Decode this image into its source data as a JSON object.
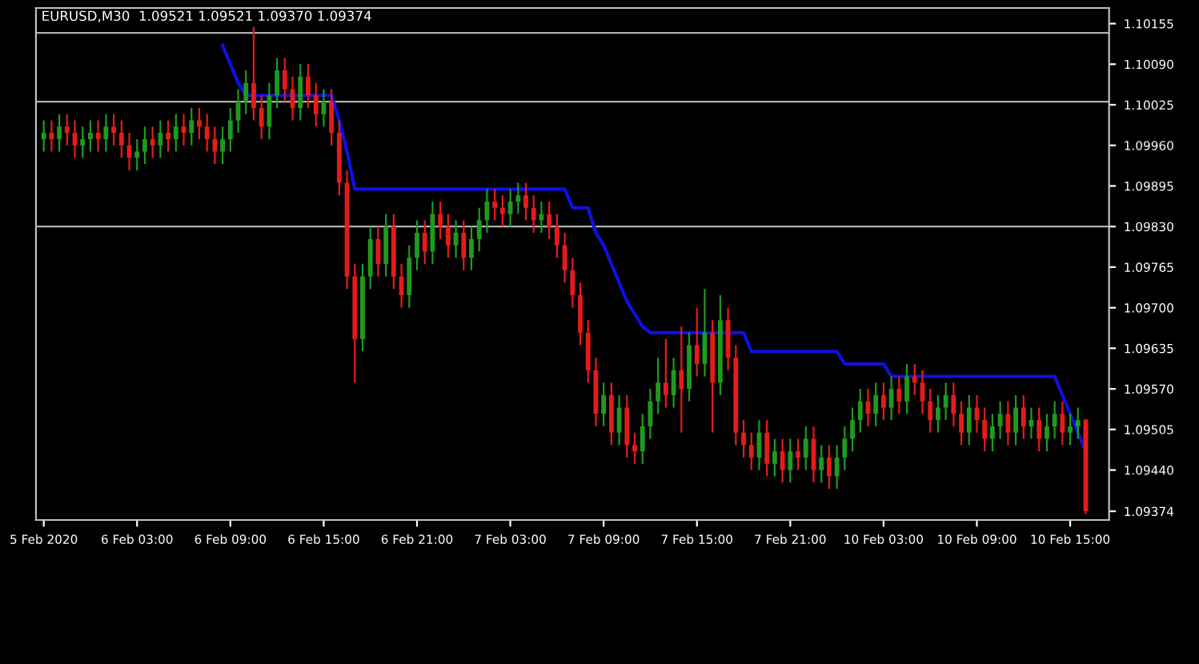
{
  "chart_data": {
    "type": "candlestick",
    "title": "EURUSD,M30  1.09521 1.09521 1.09370 1.09374",
    "categories": [
      "5 Feb 2020",
      null,
      null,
      null,
      null,
      null,
      null,
      null,
      null,
      null,
      null,
      null,
      "6 Feb 03:00",
      null,
      null,
      null,
      null,
      null,
      null,
      null,
      null,
      null,
      null,
      null,
      "6 Feb 09:00",
      null,
      null,
      null,
      null,
      null,
      null,
      null,
      null,
      null,
      null,
      null,
      "6 Feb 15:00",
      null,
      null,
      null,
      null,
      null,
      null,
      null,
      null,
      null,
      null,
      null,
      "6 Feb 21:00",
      null,
      null,
      null,
      null,
      null,
      null,
      null,
      null,
      null,
      null,
      null,
      "7 Feb 03:00",
      null,
      null,
      null,
      null,
      null,
      null,
      null,
      null,
      null,
      null,
      null,
      "7 Feb 09:00",
      null,
      null,
      null,
      null,
      null,
      null,
      null,
      null,
      null,
      null,
      null,
      "7 Feb 15:00",
      null,
      null,
      null,
      null,
      null,
      null,
      null,
      null,
      null,
      null,
      null,
      "7 Feb 21:00",
      null,
      null,
      null,
      null,
      null,
      null,
      null,
      null,
      null,
      null,
      null,
      "10 Feb 03:00",
      null,
      null,
      null,
      null,
      null,
      null,
      null,
      null,
      null,
      null,
      null,
      "10 Feb 09:00",
      null,
      null,
      null,
      null,
      null,
      null,
      null,
      null,
      null,
      null,
      null,
      "10 Feb 15:00",
      null,
      null
    ],
    "colors": [
      "#1f9a1f",
      "#e51b1b",
      "#1f9a1f",
      "#e51b1b",
      "#e51b1b",
      "#1f9a1f",
      "#1f9a1f",
      "#e51b1b",
      "#1f9a1f",
      "#e51b1b",
      "#e51b1b",
      "#e51b1b",
      "#1f9a1f",
      "#1f9a1f",
      "#e51b1b",
      "#1f9a1f",
      "#e51b1b",
      "#1f9a1f",
      "#e51b1b",
      "#1f9a1f",
      "#e51b1b",
      "#e51b1b",
      "#e51b1b",
      "#1f9a1f",
      "#1f9a1f",
      "#1f9a1f",
      "#1f9a1f",
      "#e51b1b",
      "#e51b1b",
      "#1f9a1f",
      "#1f9a1f",
      "#e51b1b",
      "#e51b1b",
      "#1f9a1f",
      "#e51b1b",
      "#e51b1b",
      "#1f9a1f",
      "#e51b1b",
      "#e51b1b",
      "#e51b1b",
      "#e51b1b",
      "#1f9a1f",
      "#1f9a1f",
      "#e51b1b",
      "#1f9a1f",
      "#e51b1b",
      "#e51b1b",
      "#1f9a1f",
      "#1f9a1f",
      "#e51b1b",
      "#1f9a1f",
      "#e51b1b",
      "#e51b1b",
      "#1f9a1f",
      "#e51b1b",
      "#1f9a1f",
      "#1f9a1f",
      "#1f9a1f",
      "#e51b1b",
      "#e51b1b",
      "#1f9a1f",
      "#1f9a1f",
      "#e51b1b",
      "#e51b1b",
      "#1f9a1f",
      "#e51b1b",
      "#e51b1b",
      "#e51b1b",
      "#e51b1b",
      "#e51b1b",
      "#e51b1b",
      "#e51b1b",
      "#1f9a1f",
      "#e51b1b",
      "#1f9a1f",
      "#e51b1b",
      "#e51b1b",
      "#1f9a1f",
      "#1f9a1f",
      "#1f9a1f",
      "#e51b1b",
      "#1f9a1f",
      "#e51b1b",
      "#1f9a1f",
      "#e51b1b",
      "#1f9a1f",
      "#e51b1b",
      "#1f9a1f",
      "#e51b1b",
      "#e51b1b",
      "#e51b1b",
      "#e51b1b",
      "#1f9a1f",
      "#e51b1b",
      "#1f9a1f",
      "#e51b1b",
      "#1f9a1f",
      "#e51b1b",
      "#1f9a1f",
      "#e51b1b",
      "#1f9a1f",
      "#e51b1b",
      "#1f9a1f",
      "#1f9a1f",
      "#1f9a1f",
      "#1f9a1f",
      "#e51b1b",
      "#1f9a1f",
      "#e51b1b",
      "#1f9a1f",
      "#e51b1b",
      "#1f9a1f",
      "#e51b1b",
      "#e51b1b",
      "#e51b1b",
      "#1f9a1f",
      "#1f9a1f",
      "#e51b1b",
      "#e51b1b",
      "#1f9a1f",
      "#e51b1b",
      "#e51b1b",
      "#1f9a1f",
      "#1f9a1f",
      "#e51b1b",
      "#1f9a1f",
      "#e51b1b",
      "#1f9a1f",
      "#e51b1b",
      "#1f9a1f",
      "#1f9a1f",
      "#e51b1b",
      "#1f9a1f",
      "#1f9a1f",
      "#e51b1b"
    ],
    "ohlc": [
      [
        1.0997,
        1.1,
        1.0995,
        1.0998
      ],
      [
        1.0998,
        1.1,
        1.0995,
        1.0997
      ],
      [
        1.0997,
        1.1001,
        1.0995,
        1.0999
      ],
      [
        1.0999,
        1.1001,
        1.0996,
        1.0998
      ],
      [
        1.0998,
        1.1,
        1.0994,
        1.0996
      ],
      [
        1.0996,
        1.0999,
        1.0994,
        1.0997
      ],
      [
        1.0997,
        1.1,
        1.0995,
        1.0998
      ],
      [
        1.0998,
        1.1,
        1.0995,
        1.0997
      ],
      [
        1.0997,
        1.1001,
        1.0995,
        1.0999
      ],
      [
        1.0999,
        1.1001,
        1.0996,
        1.0998
      ],
      [
        1.0998,
        1.1,
        1.0994,
        1.0996
      ],
      [
        1.0996,
        1.0998,
        1.0992,
        1.0994
      ],
      [
        1.0994,
        1.0997,
        1.0992,
        1.0995
      ],
      [
        1.0995,
        1.0999,
        1.0993,
        1.0997
      ],
      [
        1.0997,
        1.0999,
        1.0994,
        1.0996
      ],
      [
        1.0996,
        1.1,
        1.0994,
        1.0998
      ],
      [
        1.0998,
        1.1,
        1.0995,
        1.0997
      ],
      [
        1.0997,
        1.1001,
        1.0995,
        1.0999
      ],
      [
        1.0999,
        1.1001,
        1.0996,
        1.0998
      ],
      [
        1.0998,
        1.1002,
        1.0996,
        1.1
      ],
      [
        1.1,
        1.1002,
        1.0997,
        1.0999
      ],
      [
        1.0999,
        1.1001,
        1.0995,
        1.0997
      ],
      [
        1.0997,
        1.0999,
        1.0993,
        1.0995
      ],
      [
        1.0995,
        1.0999,
        1.0993,
        1.0997
      ],
      [
        1.0997,
        1.1002,
        1.0995,
        1.1
      ],
      [
        1.1,
        1.1005,
        1.0998,
        1.1003
      ],
      [
        1.1003,
        1.1008,
        1.1001,
        1.1006
      ],
      [
        1.1006,
        1.1015,
        1.1,
        1.1002
      ],
      [
        1.1002,
        1.1004,
        1.0997,
        1.0999
      ],
      [
        1.0999,
        1.1006,
        1.0997,
        1.1004
      ],
      [
        1.1004,
        1.101,
        1.1002,
        1.1008
      ],
      [
        1.1008,
        1.101,
        1.1003,
        1.1005
      ],
      [
        1.1005,
        1.1007,
        1.1,
        1.1002
      ],
      [
        1.1002,
        1.1009,
        1.1,
        1.1007
      ],
      [
        1.1007,
        1.1009,
        1.1002,
        1.1004
      ],
      [
        1.1004,
        1.1006,
        1.0999,
        1.1001
      ],
      [
        1.1001,
        1.1005,
        1.0999,
        1.1003
      ],
      [
        1.1003,
        1.1005,
        1.0996,
        1.0998
      ],
      [
        1.0998,
        1.1,
        1.0988,
        1.099
      ],
      [
        1.099,
        1.0992,
        1.0973,
        1.0975
      ],
      [
        1.0975,
        1.0977,
        1.0958,
        1.0965
      ],
      [
        1.0965,
        1.0977,
        1.0963,
        1.0975
      ],
      [
        1.0975,
        1.0983,
        1.0973,
        1.0981
      ],
      [
        1.0981,
        1.0983,
        1.0975,
        1.0977
      ],
      [
        1.0977,
        1.0985,
        1.0975,
        1.0983
      ],
      [
        1.0983,
        1.0985,
        1.0973,
        1.0975
      ],
      [
        1.0975,
        1.0977,
        1.097,
        1.0972
      ],
      [
        1.0972,
        1.098,
        1.097,
        1.0978
      ],
      [
        1.0978,
        1.0984,
        1.0976,
        1.0982
      ],
      [
        1.0982,
        1.0984,
        1.0977,
        1.0979
      ],
      [
        1.0979,
        1.0987,
        1.0977,
        1.0985
      ],
      [
        1.0985,
        1.0987,
        1.0981,
        1.0983
      ],
      [
        1.0983,
        1.0985,
        1.0978,
        1.098
      ],
      [
        1.098,
        1.0984,
        1.0978,
        1.0982
      ],
      [
        1.0982,
        1.0984,
        1.0976,
        1.0978
      ],
      [
        1.0978,
        1.0983,
        1.0976,
        1.0981
      ],
      [
        1.0981,
        1.0986,
        1.0979,
        1.0984
      ],
      [
        1.0984,
        1.0989,
        1.0982,
        1.0987
      ],
      [
        1.0987,
        1.0989,
        1.0984,
        1.0986
      ],
      [
        1.0986,
        1.0988,
        1.0983,
        1.0985
      ],
      [
        1.0985,
        1.0989,
        1.0983,
        1.0987
      ],
      [
        1.0987,
        1.099,
        1.0985,
        1.0988
      ],
      [
        1.0988,
        1.099,
        1.0984,
        1.0986
      ],
      [
        1.0986,
        1.0988,
        1.0982,
        1.0984
      ],
      [
        1.0984,
        1.0987,
        1.0982,
        1.0985
      ],
      [
        1.0985,
        1.0987,
        1.0981,
        1.0983
      ],
      [
        1.0983,
        1.0985,
        1.0978,
        1.098
      ],
      [
        1.098,
        1.0982,
        1.0974,
        1.0976
      ],
      [
        1.0976,
        1.0978,
        1.097,
        1.0972
      ],
      [
        1.0972,
        1.0974,
        1.0964,
        1.0966
      ],
      [
        1.0966,
        1.0968,
        1.0958,
        1.096
      ],
      [
        1.096,
        1.0962,
        1.0951,
        1.0953
      ],
      [
        1.0953,
        1.0958,
        1.0951,
        1.0956
      ],
      [
        1.0956,
        1.0958,
        1.0948,
        1.095
      ],
      [
        1.095,
        1.0956,
        1.0948,
        1.0954
      ],
      [
        1.0954,
        1.0956,
        1.0946,
        1.0948
      ],
      [
        1.0948,
        1.095,
        1.0945,
        1.0947
      ],
      [
        1.0947,
        1.0953,
        1.0945,
        1.0951
      ],
      [
        1.0951,
        1.0957,
        1.0949,
        1.0955
      ],
      [
        1.0955,
        1.0962,
        1.0953,
        1.0958
      ],
      [
        1.0958,
        1.0965,
        1.0954,
        1.0956
      ],
      [
        1.0956,
        1.0962,
        1.0954,
        1.096
      ],
      [
        1.096,
        1.0967,
        1.095,
        1.0957
      ],
      [
        1.0957,
        1.0966,
        1.0955,
        1.0964
      ],
      [
        1.0964,
        1.097,
        1.0959,
        1.0961
      ],
      [
        1.0961,
        1.0973,
        1.0959,
        1.0966
      ],
      [
        1.0966,
        1.0968,
        1.095,
        1.0958
      ],
      [
        1.0958,
        1.0972,
        1.0956,
        1.0968
      ],
      [
        1.0968,
        1.097,
        1.096,
        1.0962
      ],
      [
        1.0962,
        1.0964,
        1.0948,
        1.095
      ],
      [
        1.095,
        1.0952,
        1.0946,
        1.0948
      ],
      [
        1.0948,
        1.095,
        1.0944,
        1.0946
      ],
      [
        1.0946,
        1.0952,
        1.0944,
        1.095
      ],
      [
        1.095,
        1.0952,
        1.0943,
        1.0945
      ],
      [
        1.0945,
        1.0949,
        1.0943,
        1.0947
      ],
      [
        1.0947,
        1.0949,
        1.0942,
        1.0944
      ],
      [
        1.0944,
        1.0949,
        1.0942,
        1.0947
      ],
      [
        1.0947,
        1.0949,
        1.0944,
        1.0946
      ],
      [
        1.0946,
        1.0951,
        1.0944,
        1.0949
      ],
      [
        1.0949,
        1.0951,
        1.0942,
        1.0944
      ],
      [
        1.0944,
        1.0948,
        1.0942,
        1.0946
      ],
      [
        1.0946,
        1.0948,
        1.0941,
        1.0943
      ],
      [
        1.0943,
        1.0948,
        1.0941,
        1.0946
      ],
      [
        1.0946,
        1.0951,
        1.0944,
        1.0949
      ],
      [
        1.0949,
        1.0954,
        1.0947,
        1.0952
      ],
      [
        1.0952,
        1.0957,
        1.095,
        1.0955
      ],
      [
        1.0955,
        1.0957,
        1.0951,
        1.0953
      ],
      [
        1.0953,
        1.0958,
        1.0951,
        1.0956
      ],
      [
        1.0956,
        1.0958,
        1.0952,
        1.0954
      ],
      [
        1.0954,
        1.0959,
        1.0952,
        1.0957
      ],
      [
        1.0957,
        1.0959,
        1.0953,
        1.0955
      ],
      [
        1.0955,
        1.0961,
        1.0953,
        1.0959
      ],
      [
        1.0959,
        1.0961,
        1.0956,
        1.0958
      ],
      [
        1.0958,
        1.096,
        1.0953,
        1.0955
      ],
      [
        1.0955,
        1.0957,
        1.095,
        1.0952
      ],
      [
        1.0952,
        1.0956,
        1.095,
        1.0954
      ],
      [
        1.0954,
        1.0958,
        1.0952,
        1.0956
      ],
      [
        1.0956,
        1.0958,
        1.0951,
        1.0953
      ],
      [
        1.0953,
        1.0955,
        1.0948,
        1.095
      ],
      [
        1.095,
        1.0956,
        1.0948,
        1.0954
      ],
      [
        1.0954,
        1.0956,
        1.095,
        1.0952
      ],
      [
        1.0952,
        1.0954,
        1.0947,
        1.0949
      ],
      [
        1.0949,
        1.0953,
        1.0947,
        1.0951
      ],
      [
        1.0951,
        1.0955,
        1.0949,
        1.0953
      ],
      [
        1.0953,
        1.0955,
        1.0948,
        1.095
      ],
      [
        1.095,
        1.0956,
        1.0948,
        1.0954
      ],
      [
        1.0954,
        1.0956,
        1.0949,
        1.0951
      ],
      [
        1.0951,
        1.0954,
        1.0949,
        1.0952
      ],
      [
        1.0952,
        1.0954,
        1.0947,
        1.0949
      ],
      [
        1.0949,
        1.0953,
        1.0947,
        1.0951
      ],
      [
        1.0951,
        1.0955,
        1.0949,
        1.0953
      ],
      [
        1.0953,
        1.0955,
        1.0948,
        1.095
      ],
      [
        1.095,
        1.0953,
        1.0948,
        1.0951
      ],
      [
        1.0951,
        1.0954,
        1.0949,
        1.0952
      ],
      [
        1.09521,
        1.09521,
        1.0937,
        1.09374
      ]
    ],
    "series": [
      {
        "type": "line",
        "color": "#1010e0",
        "values": [
          null,
          null,
          null,
          null,
          null,
          null,
          null,
          null,
          null,
          null,
          null,
          null,
          null,
          null,
          null,
          null,
          null,
          null,
          null,
          null,
          null,
          null,
          null,
          1.1012,
          1.1009,
          1.1006,
          1.1004,
          1.1004,
          1.1004,
          1.1004,
          1.1004,
          1.1004,
          1.1004,
          1.1004,
          1.1004,
          1.1004,
          1.1004,
          1.1004,
          1.1,
          1.0995,
          1.0989,
          1.0989,
          1.0989,
          1.0989,
          1.0989,
          1.0989,
          1.0989,
          1.0989,
          1.0989,
          1.0989,
          1.0989,
          1.0989,
          1.0989,
          1.0989,
          1.0989,
          1.0989,
          1.0989,
          1.0989,
          1.0989,
          1.0989,
          1.0989,
          1.0989,
          1.0989,
          1.0989,
          1.0989,
          1.0989,
          1.0989,
          1.0989,
          1.0986,
          1.0986,
          1.0986,
          1.0982,
          1.098,
          1.0977,
          1.0974,
          1.0971,
          1.0969,
          1.0967,
          1.0966,
          1.0966,
          1.0966,
          1.0966,
          1.0966,
          1.0966,
          1.0966,
          1.0966,
          1.0966,
          1.0966,
          1.0966,
          1.0966,
          1.0966,
          1.0963,
          1.0963,
          1.0963,
          1.0963,
          1.0963,
          1.0963,
          1.0963,
          1.0963,
          1.0963,
          1.0963,
          1.0963,
          1.0963,
          1.0961,
          1.0961,
          1.0961,
          1.0961,
          1.0961,
          1.0961,
          1.0959,
          1.0959,
          1.0959,
          1.0959,
          1.0959,
          1.0959,
          1.0959,
          1.0959,
          1.0959,
          1.0959,
          1.0959,
          1.0959,
          1.0959,
          1.0959,
          1.0959,
          1.0959,
          1.0959,
          1.0959,
          1.0959,
          1.0959,
          1.0959,
          1.0959,
          1.0956,
          1.0953,
          1.095,
          1.0947
        ]
      }
    ],
    "ylim": [
      1.0936,
      1.1018
    ],
    "yticks": [
      1.10155,
      {
        "value": 1.1009,
        "label": "1.10090"
      },
      1.10025,
      {
        "value": 1.0996,
        "label": "1.09960"
      },
      1.09895,
      {
        "value": 1.0983,
        "label": "1.09830"
      },
      1.09765,
      {
        "value": 1.097,
        "label": "1.09700"
      },
      1.09635,
      {
        "value": 1.0957,
        "label": "1.09570"
      },
      1.09505,
      {
        "value": 1.0944,
        "label": "1.09440"
      },
      1.09374
    ],
    "ref_lines": [
      {
        "axis": "y",
        "value": 1.1014,
        "color": "#b0b0b0"
      },
      {
        "axis": "y",
        "value": 1.1003,
        "color": "#b0b0b0"
      },
      {
        "axis": "y",
        "value": 1.0983,
        "color": "#b0b0b0"
      }
    ],
    "grid": false
  }
}
